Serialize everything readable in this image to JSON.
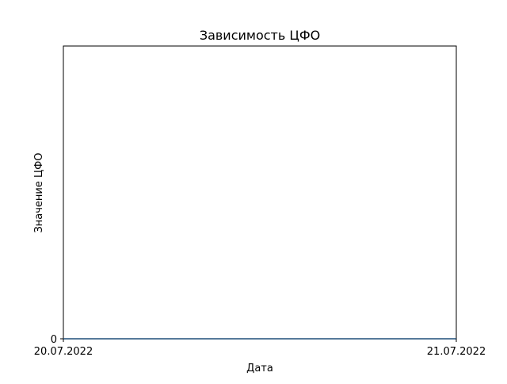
{
  "chart_data": {
    "type": "line",
    "title": "Зависимость ЦФО",
    "xlabel": "Дата",
    "ylabel": "Значение ЦФО",
    "x": [
      "20.07.2022",
      "21.07.2022"
    ],
    "series": [
      {
        "values": [
          0,
          0
        ],
        "color": "#1f4e79"
      }
    ],
    "xlim": [
      "20.07.2022",
      "21.07.2022"
    ],
    "ylim": [
      0,
      1
    ],
    "x_ticks": [
      "20.07.2022",
      "21.07.2022"
    ],
    "y_ticks": [
      0
    ],
    "grid": false,
    "colors": {
      "axes": "#000000",
      "background": "#ffffff"
    }
  }
}
